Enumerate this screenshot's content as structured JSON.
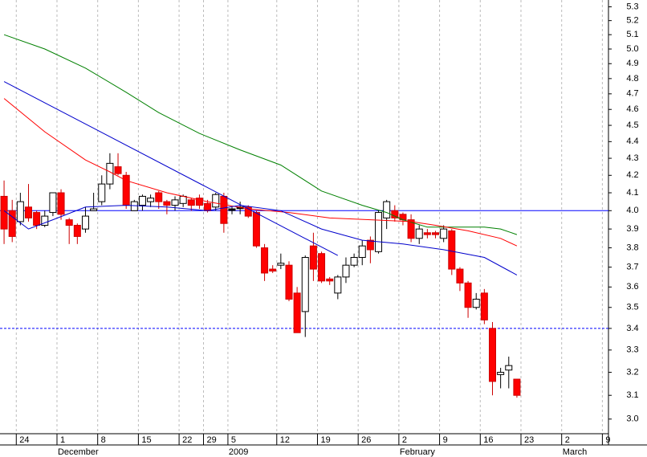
{
  "chart_data": {
    "type": "candlestick",
    "log_scale": true,
    "xlim": [
      -0.5,
      74.25
    ],
    "ylim": [
      2.94,
      5.35
    ],
    "xticks": [
      {
        "value": 2,
        "label": "24"
      },
      {
        "value": 7,
        "label": "1"
      },
      {
        "value": 12,
        "label": "8"
      },
      {
        "value": 17,
        "label": "15"
      },
      {
        "value": 22,
        "label": "22"
      },
      {
        "value": 25,
        "label": "29"
      },
      {
        "value": 28,
        "label": "5"
      },
      {
        "value": 34,
        "label": "12"
      },
      {
        "value": 39,
        "label": "19"
      },
      {
        "value": 44,
        "label": "26"
      },
      {
        "value": 49,
        "label": "2"
      },
      {
        "value": 54,
        "label": "9"
      },
      {
        "value": 59,
        "label": "16"
      },
      {
        "value": 64,
        "label": "23"
      },
      {
        "value": 69,
        "label": "2"
      },
      {
        "value": 74,
        "label": "9"
      }
    ],
    "month_labels": [
      {
        "value": 7,
        "label": "December"
      },
      {
        "value": 28,
        "label": "2009"
      },
      {
        "value": 49,
        "label": "February"
      },
      {
        "value": 69,
        "label": "March"
      }
    ],
    "yticks": [
      {
        "value": 3,
        "label": "3.0"
      },
      3.1,
      3.2,
      3.3,
      3.4,
      3.5,
      3.6,
      3.7,
      3.8,
      3.9,
      {
        "value": 4,
        "label": "4.0"
      },
      4.1,
      4.2,
      4.3,
      4.4,
      4.5,
      4.6,
      4.7,
      4.8,
      4.9,
      {
        "value": 5,
        "label": "5.0"
      },
      5.1,
      5.2,
      5.3
    ],
    "grid": true,
    "up_color": "#ffffff",
    "down_color": "#ff0000",
    "unchanged_color": "#000000",
    "x": [
      0,
      1,
      2,
      3,
      4,
      5,
      6,
      7,
      8,
      9,
      10,
      11,
      12,
      13,
      14,
      15,
      16,
      17,
      18,
      19,
      20,
      21,
      22,
      23,
      24,
      25,
      26,
      27,
      28,
      29,
      30,
      31,
      32,
      33,
      34,
      35,
      36,
      37,
      38,
      39,
      40,
      41,
      42,
      43,
      44,
      45,
      46,
      47,
      48,
      49,
      50,
      51,
      52,
      53,
      54,
      55,
      56,
      57,
      58,
      59,
      60,
      61,
      62,
      63
    ],
    "open": [
      4.08,
      4.0,
      3.94,
      4.02,
      3.99,
      3.92,
      3.99,
      4.1,
      3.95,
      3.92,
      3.9,
      4.0,
      4.05,
      4.15,
      4.25,
      4.2,
      4.0,
      4.03,
      4.05,
      4.1,
      4.05,
      4.03,
      4.04,
      4.06,
      4.07,
      4.04,
      4.02,
      4.08,
      4.01,
      4.02,
      4.02,
      3.99,
      3.8,
      3.69,
      3.71,
      3.71,
      3.57,
      3.48,
      3.81,
      3.77,
      3.64,
      3.57,
      3.65,
      3.71,
      3.75,
      3.84,
      3.78,
      3.96,
      4.0,
      3.98,
      3.95,
      3.85,
      3.88,
      3.88,
      3.85,
      3.89,
      3.69,
      3.62,
      3.5,
      3.57,
      3.4,
      3.19,
      3.21,
      3.17
    ],
    "high": [
      4.17,
      4.06,
      4.1,
      4.15,
      4.0,
      4.0,
      4.1,
      4.12,
      3.96,
      3.93,
      4.02,
      4.1,
      4.2,
      4.33,
      4.33,
      4.22,
      4.06,
      4.09,
      4.09,
      4.11,
      4.06,
      4.08,
      4.09,
      4.07,
      4.09,
      4.06,
      4.1,
      4.1,
      4.02,
      4.05,
      4.03,
      4.0,
      3.82,
      3.71,
      3.77,
      3.73,
      3.6,
      3.76,
      3.88,
      3.78,
      3.65,
      3.66,
      3.75,
      3.77,
      3.84,
      3.86,
      4.0,
      4.06,
      4.03,
      3.99,
      3.98,
      3.92,
      3.9,
      3.89,
      3.92,
      3.9,
      3.7,
      3.63,
      3.57,
      3.59,
      3.43,
      3.22,
      3.27,
      3.17
    ],
    "low": [
      3.82,
      3.83,
      3.92,
      3.94,
      3.9,
      3.91,
      3.97,
      3.95,
      3.82,
      3.82,
      3.88,
      4.0,
      4.03,
      4.12,
      4.2,
      4.01,
      4.0,
      4.0,
      4.02,
      4.01,
      3.98,
      4.0,
      4.02,
      4.0,
      4.01,
      3.99,
      4.0,
      3.88,
      3.98,
      3.98,
      3.96,
      3.8,
      3.63,
      3.67,
      3.69,
      3.53,
      3.38,
      3.36,
      3.63,
      3.62,
      3.61,
      3.54,
      3.62,
      3.7,
      3.71,
      3.72,
      3.77,
      3.9,
      3.94,
      3.92,
      3.83,
      3.82,
      3.85,
      3.85,
      3.83,
      3.66,
      3.58,
      3.45,
      3.49,
      3.42,
      3.1,
      3.13,
      3.13,
      3.09
    ],
    "close": [
      3.9,
      3.86,
      4.05,
      3.96,
      3.92,
      3.97,
      4.1,
      3.98,
      3.92,
      3.86,
      3.97,
      4.01,
      4.15,
      4.27,
      4.21,
      4.03,
      4.05,
      4.08,
      4.07,
      4.05,
      4.03,
      4.06,
      4.08,
      4.03,
      4.03,
      4.0,
      4.09,
      3.93,
      4.01,
      4.02,
      3.97,
      3.81,
      3.67,
      3.68,
      3.72,
      3.54,
      3.38,
      3.75,
      3.69,
      3.63,
      3.63,
      3.65,
      3.71,
      3.75,
      3.81,
      3.79,
      3.99,
      4.05,
      3.96,
      3.95,
      3.85,
      3.9,
      3.87,
      3.87,
      3.9,
      3.69,
      3.62,
      3.5,
      3.54,
      3.44,
      3.16,
      3.2,
      3.23,
      3.1
    ],
    "lines": [
      {
        "color": "#008000",
        "x": [
          0,
          5,
          10,
          15,
          19,
          24,
          29,
          34,
          39,
          44,
          47,
          49,
          52,
          55,
          59,
          61,
          63
        ],
        "values": [
          5.1,
          5.0,
          4.87,
          4.71,
          4.58,
          4.45,
          4.35,
          4.26,
          4.11,
          4.03,
          3.99,
          3.95,
          3.91,
          3.91,
          3.91,
          3.9,
          3.87
        ]
      },
      {
        "color": "#ff0000",
        "x": [
          0,
          5,
          10,
          13,
          15,
          20,
          25,
          30,
          35,
          40,
          45,
          50,
          53,
          57,
          61,
          63
        ],
        "values": [
          4.67,
          4.46,
          4.29,
          4.22,
          4.17,
          4.1,
          4.05,
          4.01,
          3.99,
          3.96,
          3.95,
          3.94,
          3.92,
          3.89,
          3.85,
          3.81
        ]
      },
      {
        "color": "#0000cc",
        "x": [
          0,
          3,
          6,
          10,
          15,
          20,
          25,
          29,
          34,
          39,
          44,
          49,
          54,
          59,
          63
        ],
        "values": [
          4.0,
          3.9,
          3.95,
          4.02,
          4.03,
          4.02,
          4.0,
          4.03,
          4.0,
          3.9,
          3.84,
          3.82,
          3.79,
          3.75,
          3.66
        ]
      },
      {
        "color": "#0000cc",
        "x": [
          0,
          41
        ],
        "values": [
          4.78,
          3.76
        ]
      }
    ],
    "hlines": [
      {
        "value": 4,
        "color": "#0000ff",
        "style": "solid"
      },
      {
        "value": 3.4,
        "color": "#0000ff",
        "style": "dashed"
      }
    ]
  }
}
